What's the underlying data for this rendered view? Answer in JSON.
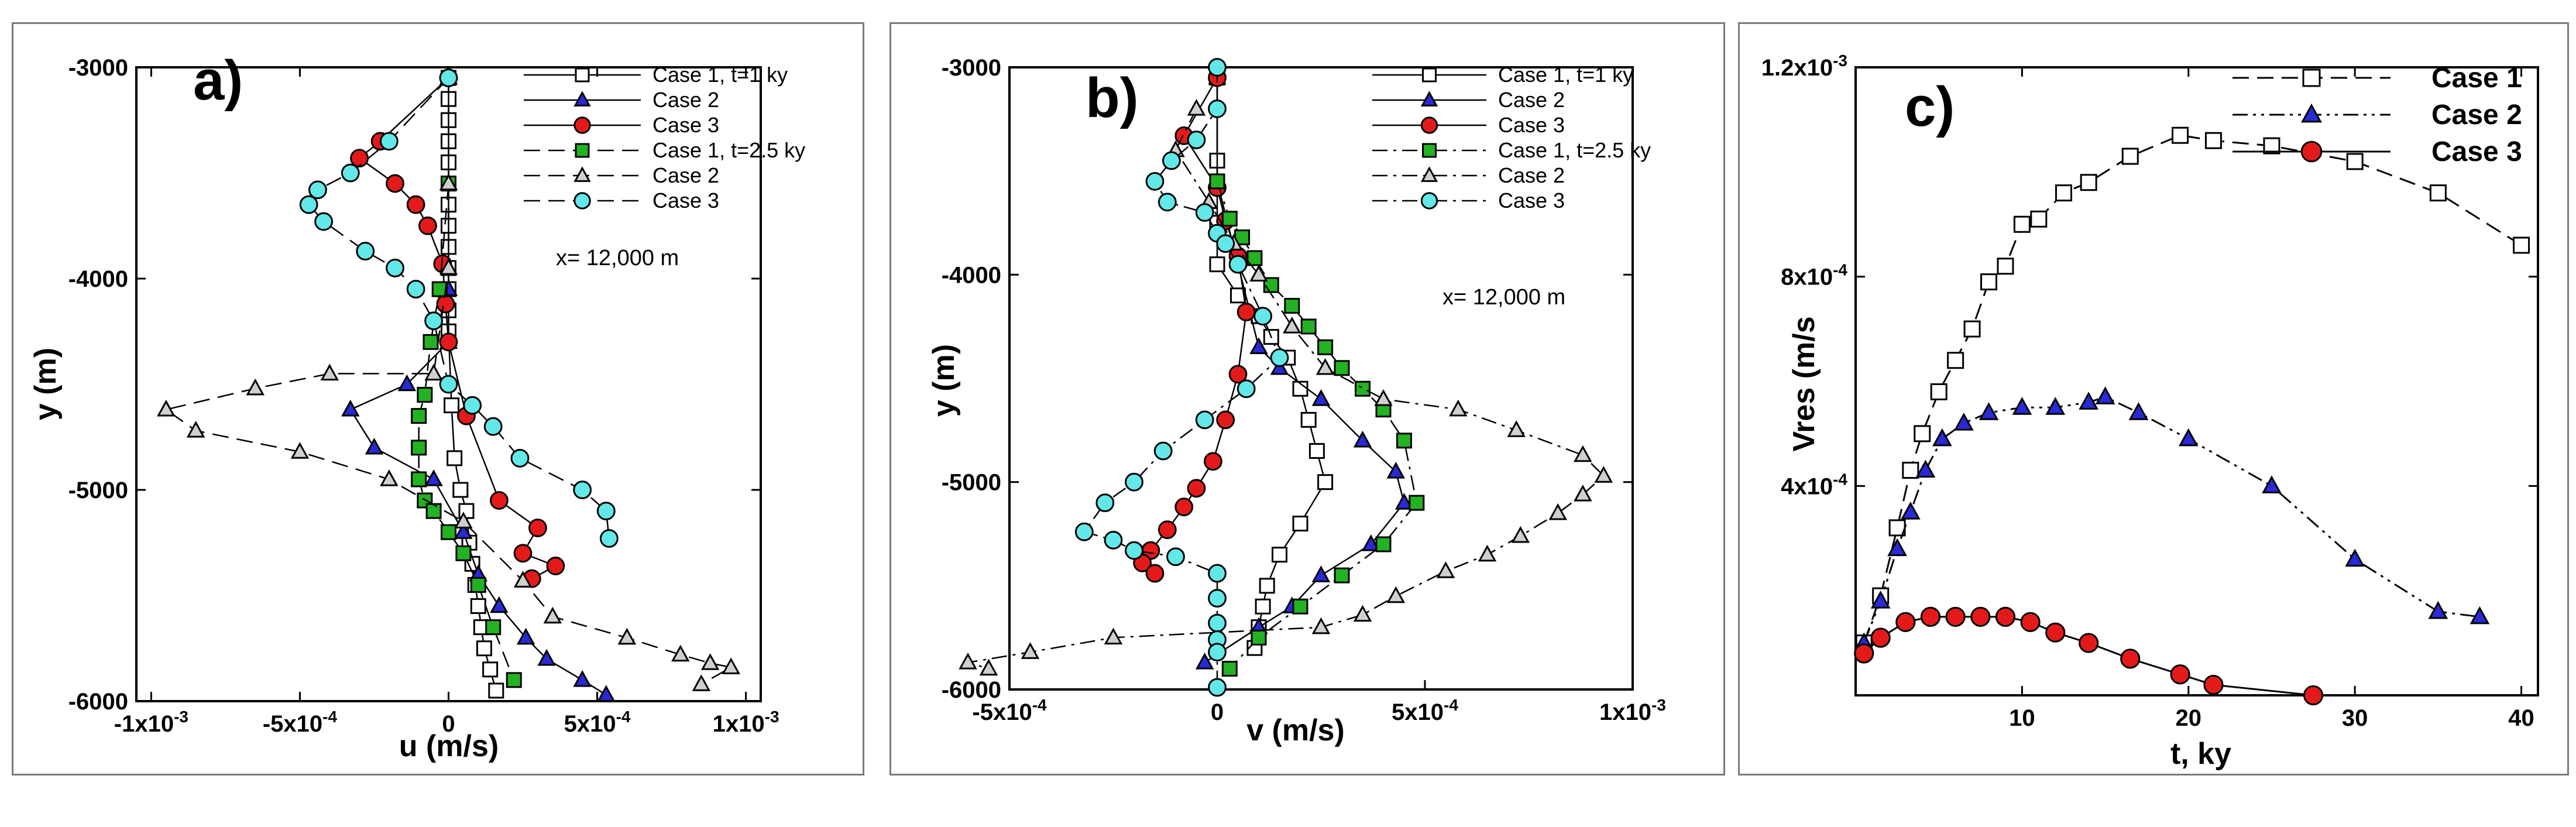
{
  "colors": {
    "open": "#ffffff",
    "blue": "#2929d6",
    "red": "#e41a1a",
    "green": "#22b222",
    "gray": "#cfcfcf",
    "cyan": "#62e8e8"
  },
  "chart_data": [
    {
      "type": "scatter",
      "panel_label": "a)",
      "xlabel": "u (m/s)",
      "ylabel": "y (m)",
      "xlim": [
        -0.00105,
        0.00105
      ],
      "ylim": [
        -6000,
        -3000
      ],
      "x_ticks": [
        {
          "v": -0.001,
          "m": "-1x10",
          "e": "-3"
        },
        {
          "v": -0.0005,
          "m": "-5x10",
          "e": "-4"
        },
        {
          "v": 0,
          "m": "0"
        },
        {
          "v": 0.0005,
          "m": "5x10",
          "e": "-4"
        },
        {
          "v": 0.001,
          "m": "1x10",
          "e": "-3"
        }
      ],
      "y_ticks": [
        {
          "v": -3000,
          "m": "-3000"
        },
        {
          "v": -4000,
          "m": "-4000"
        },
        {
          "v": -5000,
          "m": "-5000"
        },
        {
          "v": -6000,
          "m": "-6000"
        }
      ],
      "annotation": "x= 12,000 m",
      "series": [
        {
          "name": "Case 1, t=1 ky",
          "marker": "square",
          "fill": "open",
          "line": "solid",
          "x": [
            0,
            0,
            0,
            0,
            0,
            0,
            0,
            0,
            0,
            0,
            0,
            0,
            0,
            1e-05,
            2e-05,
            4e-05,
            6e-05,
            7e-05,
            8e-05,
            9e-05,
            0.0001,
            0.00011,
            0.00012,
            0.00014,
            0.00016
          ],
          "y": [
            -3050,
            -3150,
            -3250,
            -3350,
            -3450,
            -3550,
            -3650,
            -3750,
            -3850,
            -3950,
            -4050,
            -4150,
            -4250,
            -4600,
            -4850,
            -5000,
            -5100,
            -5250,
            -5350,
            -5450,
            -5550,
            -5650,
            -5750,
            -5850,
            -5950
          ]
        },
        {
          "name": "Case 2",
          "marker": "triangle",
          "fill": "blue",
          "line": "solid",
          "x": [
            0,
            0,
            0,
            0,
            -0.00014,
            -0.00033,
            -0.00025,
            -5e-05,
            5e-05,
            0.0001,
            0.00017,
            0.00026,
            0.00033,
            0.00045,
            0.00053
          ],
          "y": [
            -3050,
            -3550,
            -4050,
            -4300,
            -4500,
            -4620,
            -4800,
            -4950,
            -5200,
            -5400,
            -5550,
            -5700,
            -5800,
            -5900,
            -5970
          ]
        },
        {
          "name": "Case 3",
          "marker": "circle",
          "fill": "red",
          "line": "solid",
          "x": [
            0,
            -0.00023,
            -0.0003,
            -0.00018,
            -0.00011,
            -7e-05,
            -2e-05,
            -1e-05,
            0,
            6e-05,
            0.00017,
            0.0003,
            0.00025,
            0.00036,
            0.00028
          ],
          "y": [
            -3050,
            -3350,
            -3430,
            -3550,
            -3650,
            -3750,
            -3930,
            -4120,
            -4300,
            -4650,
            -5050,
            -5180,
            -5300,
            -5360,
            -5420
          ]
        },
        {
          "name": "Case 1, t=2.5 ky",
          "marker": "square",
          "fill": "green",
          "line": "dash",
          "x": [
            0,
            -3e-05,
            -6e-05,
            -8e-05,
            -0.0001,
            -0.0001,
            -0.0001,
            -8e-05,
            -5e-05,
            0,
            5e-05,
            0.0001,
            0.00015,
            0.00022
          ],
          "y": [
            -3550,
            -4050,
            -4300,
            -4550,
            -4650,
            -4800,
            -4950,
            -5050,
            -5100,
            -5200,
            -5300,
            -5450,
            -5650,
            -5900
          ]
        },
        {
          "name": "Case 2",
          "marker": "triangle",
          "fill": "gray",
          "line": "dash",
          "x": [
            0,
            0,
            -5e-05,
            -0.0004,
            -0.00065,
            -0.00095,
            -0.00085,
            -0.0005,
            -0.0002,
            5e-05,
            0.00025,
            0.00035,
            0.0006,
            0.00078,
            0.00088,
            0.00095,
            0.00085
          ],
          "y": [
            -3550,
            -3950,
            -4450,
            -4450,
            -4520,
            -4620,
            -4720,
            -4820,
            -4950,
            -5150,
            -5430,
            -5600,
            -5700,
            -5780,
            -5820,
            -5840,
            -5920
          ]
        },
        {
          "name": "Case 3",
          "marker": "circle",
          "fill": "cyan",
          "line": "dash",
          "x": [
            0,
            -0.0002,
            -0.00033,
            -0.00044,
            -0.00047,
            -0.00042,
            -0.00028,
            -0.00018,
            -0.00011,
            -5e-05,
            0,
            8e-05,
            0.00015,
            0.00024,
            0.00045,
            0.00053,
            0.00054
          ],
          "y": [
            -3050,
            -3350,
            -3500,
            -3580,
            -3650,
            -3730,
            -3870,
            -3950,
            -4050,
            -4200,
            -4500,
            -4600,
            -4700,
            -4850,
            -5000,
            -5100,
            -5230
          ]
        }
      ]
    },
    {
      "type": "scatter",
      "panel_label": "b)",
      "xlabel": "v (m/s)",
      "ylabel": "y (m)",
      "xlim": [
        -0.0005,
        0.001
      ],
      "ylim": [
        -6000,
        -3000
      ],
      "x_ticks": [
        {
          "v": -0.0005,
          "m": "-5x10",
          "e": "-4"
        },
        {
          "v": 0,
          "m": "0"
        },
        {
          "v": 0.0005,
          "m": "5x10",
          "e": "-4"
        },
        {
          "v": 0.001,
          "m": "1x10",
          "e": "-3"
        }
      ],
      "y_ticks": [
        {
          "v": -3000,
          "m": "-3000"
        },
        {
          "v": -4000,
          "m": "-4000"
        },
        {
          "v": -5000,
          "m": "-5000"
        },
        {
          "v": -6000,
          "m": "-6000"
        }
      ],
      "annotation": "x= 12,000 m",
      "series": [
        {
          "name": "Case 1, t=1 ky",
          "marker": "square",
          "fill": "open",
          "line": "solid",
          "x": [
            0,
            0,
            0,
            0,
            5e-05,
            0.0001,
            0.00013,
            0.00017,
            0.0002,
            0.00022,
            0.00024,
            0.00026,
            0.0002,
            0.00015,
            0.00012,
            0.00011,
            0.0001,
            9e-05
          ],
          "y": [
            -3050,
            -3450,
            -3750,
            -3950,
            -4100,
            -4200,
            -4300,
            -4400,
            -4550,
            -4700,
            -4850,
            -5000,
            -5200,
            -5350,
            -5500,
            -5600,
            -5700,
            -5800
          ]
        },
        {
          "name": "Case 2",
          "marker": "triangle",
          "fill": "blue",
          "line": "solid",
          "x": [
            0,
            0,
            0.0001,
            0.00015,
            0.00025,
            0.00035,
            0.00043,
            0.00045,
            0.00037,
            0.00025,
            0.00018,
            0.0001,
            -3e-05
          ],
          "y": [
            -3050,
            -3550,
            -4350,
            -4450,
            -4600,
            -4800,
            -4950,
            -5100,
            -5300,
            -5450,
            -5600,
            -5700,
            -5870
          ]
        },
        {
          "name": "Case 3",
          "marker": "circle",
          "fill": "red",
          "line": "solid",
          "x": [
            0,
            -8e-05,
            0,
            2e-05,
            5e-05,
            7e-05,
            5e-05,
            2e-05,
            -1e-05,
            -5e-05,
            -8e-05,
            -0.00012,
            -0.00016,
            -0.00018,
            -0.00015
          ],
          "y": [
            -3050,
            -3330,
            -3580,
            -3740,
            -3910,
            -4180,
            -4480,
            -4700,
            -4900,
            -5030,
            -5120,
            -5230,
            -5330,
            -5390,
            -5440
          ]
        },
        {
          "name": "Case 1, t=2.5 ky",
          "marker": "square",
          "fill": "green",
          "line": "dashdot",
          "x": [
            0,
            3e-05,
            6e-05,
            9e-05,
            0.00013,
            0.00018,
            0.00022,
            0.00026,
            0.0003,
            0.00035,
            0.0004,
            0.00045,
            0.00048,
            0.0004,
            0.0003,
            0.0002,
            0.0001,
            3e-05
          ],
          "y": [
            -3550,
            -3730,
            -3820,
            -3920,
            -4050,
            -4150,
            -4250,
            -4350,
            -4450,
            -4550,
            -4650,
            -4800,
            -5100,
            -5300,
            -5450,
            -5600,
            -5750,
            -5900
          ]
        },
        {
          "name": "Case 2",
          "marker": "triangle",
          "fill": "gray",
          "line": "dashdot",
          "x": [
            -5e-05,
            -0.0001,
            -2e-05,
            4e-05,
            0.0001,
            0.00018,
            0.00026,
            0.0004,
            0.00058,
            0.00072,
            0.00088,
            0.00093,
            0.00088,
            0.00082,
            0.00073,
            0.00065,
            0.00055,
            0.00043,
            0.00035,
            0.00025,
            -0.00025,
            -0.00045,
            -0.0006,
            -0.00055
          ],
          "y": [
            -3200,
            -3400,
            -3650,
            -3850,
            -4000,
            -4250,
            -4450,
            -4600,
            -4650,
            -4750,
            -4870,
            -4970,
            -5060,
            -5150,
            -5260,
            -5350,
            -5430,
            -5550,
            -5640,
            -5700,
            -5750,
            -5820,
            -5870,
            -5900
          ]
        },
        {
          "name": "Case 3",
          "marker": "circle",
          "fill": "cyan",
          "line": "dashdot",
          "x": [
            0,
            0,
            -5e-05,
            -0.00011,
            -0.00015,
            -0.00012,
            -3e-05,
            0,
            2e-05,
            5e-05,
            0.00011,
            0.00015,
            7e-05,
            -3e-05,
            -0.00013,
            -0.0002,
            -0.00027,
            -0.00032,
            -0.00025,
            -0.0002,
            -0.0001,
            0,
            0,
            0,
            0,
            0,
            0
          ],
          "y": [
            -3000,
            -3200,
            -3350,
            -3450,
            -3550,
            -3650,
            -3700,
            -3800,
            -3850,
            -3950,
            -4200,
            -4400,
            -4550,
            -4700,
            -4850,
            -5000,
            -5100,
            -5240,
            -5280,
            -5330,
            -5360,
            -5440,
            -5560,
            -5680,
            -5760,
            -5820,
            -5990
          ]
        }
      ]
    },
    {
      "type": "line",
      "panel_label": "c)",
      "xlabel": "t, ky",
      "ylabel": "Vres (m/s",
      "xlim": [
        0,
        41
      ],
      "ylim": [
        0,
        0.0012
      ],
      "x_ticks": [
        {
          "v": 10,
          "m": "10"
        },
        {
          "v": 20,
          "m": "20"
        },
        {
          "v": 30,
          "m": "30"
        },
        {
          "v": 40,
          "m": "40"
        }
      ],
      "y_ticks": [
        {
          "v": 0.0004,
          "m": "4x10",
          "e": "-4"
        },
        {
          "v": 0.0008,
          "m": "8x10",
          "e": "-4"
        },
        {
          "v": 0.0012,
          "m": "1.2x10",
          "e": "-3"
        }
      ],
      "series": [
        {
          "name": "Case 1",
          "marker": "square",
          "fill": "open",
          "line": "dash",
          "x": [
            0.5,
            1.5,
            2.5,
            3.3,
            4,
            5,
            6,
            7,
            8,
            9,
            10,
            11,
            12.5,
            14,
            16.5,
            19.5,
            21.5,
            25,
            30,
            35,
            40
          ],
          "y": [
            0.0001,
            0.00019,
            0.00032,
            0.00043,
            0.0005,
            0.00058,
            0.00064,
            0.0007,
            0.00079,
            0.00082,
            0.0009,
            0.00091,
            0.00096,
            0.00098,
            0.00103,
            0.00107,
            0.00106,
            0.00105,
            0.00102,
            0.00096,
            0.00086
          ]
        },
        {
          "name": "Case 2",
          "marker": "triangle",
          "fill": "blue",
          "line": "dashdotdot",
          "x": [
            0.5,
            1.5,
            2.5,
            3.3,
            4.2,
            5.2,
            6.5,
            8,
            10,
            12,
            14,
            15,
            17,
            20,
            25,
            30,
            35,
            37.5
          ],
          "y": [
            0.0001,
            0.00018,
            0.00028,
            0.00035,
            0.00043,
            0.00049,
            0.00052,
            0.00054,
            0.00055,
            0.00055,
            0.00056,
            0.00057,
            0.00054,
            0.00049,
            0.0004,
            0.00026,
            0.00016,
            0.00015
          ]
        },
        {
          "name": "Case 3",
          "marker": "circle",
          "fill": "red",
          "line": "solid",
          "x": [
            0.5,
            1.5,
            3,
            4.5,
            6,
            7.5,
            9,
            10.5,
            12,
            14,
            16.5,
            19.5,
            21.5,
            27.5
          ],
          "y": [
            8e-05,
            0.00011,
            0.00014,
            0.00015,
            0.00015,
            0.00015,
            0.00015,
            0.00014,
            0.00012,
            0.0001,
            7e-05,
            4e-05,
            2e-05,
            0
          ]
        }
      ]
    }
  ]
}
